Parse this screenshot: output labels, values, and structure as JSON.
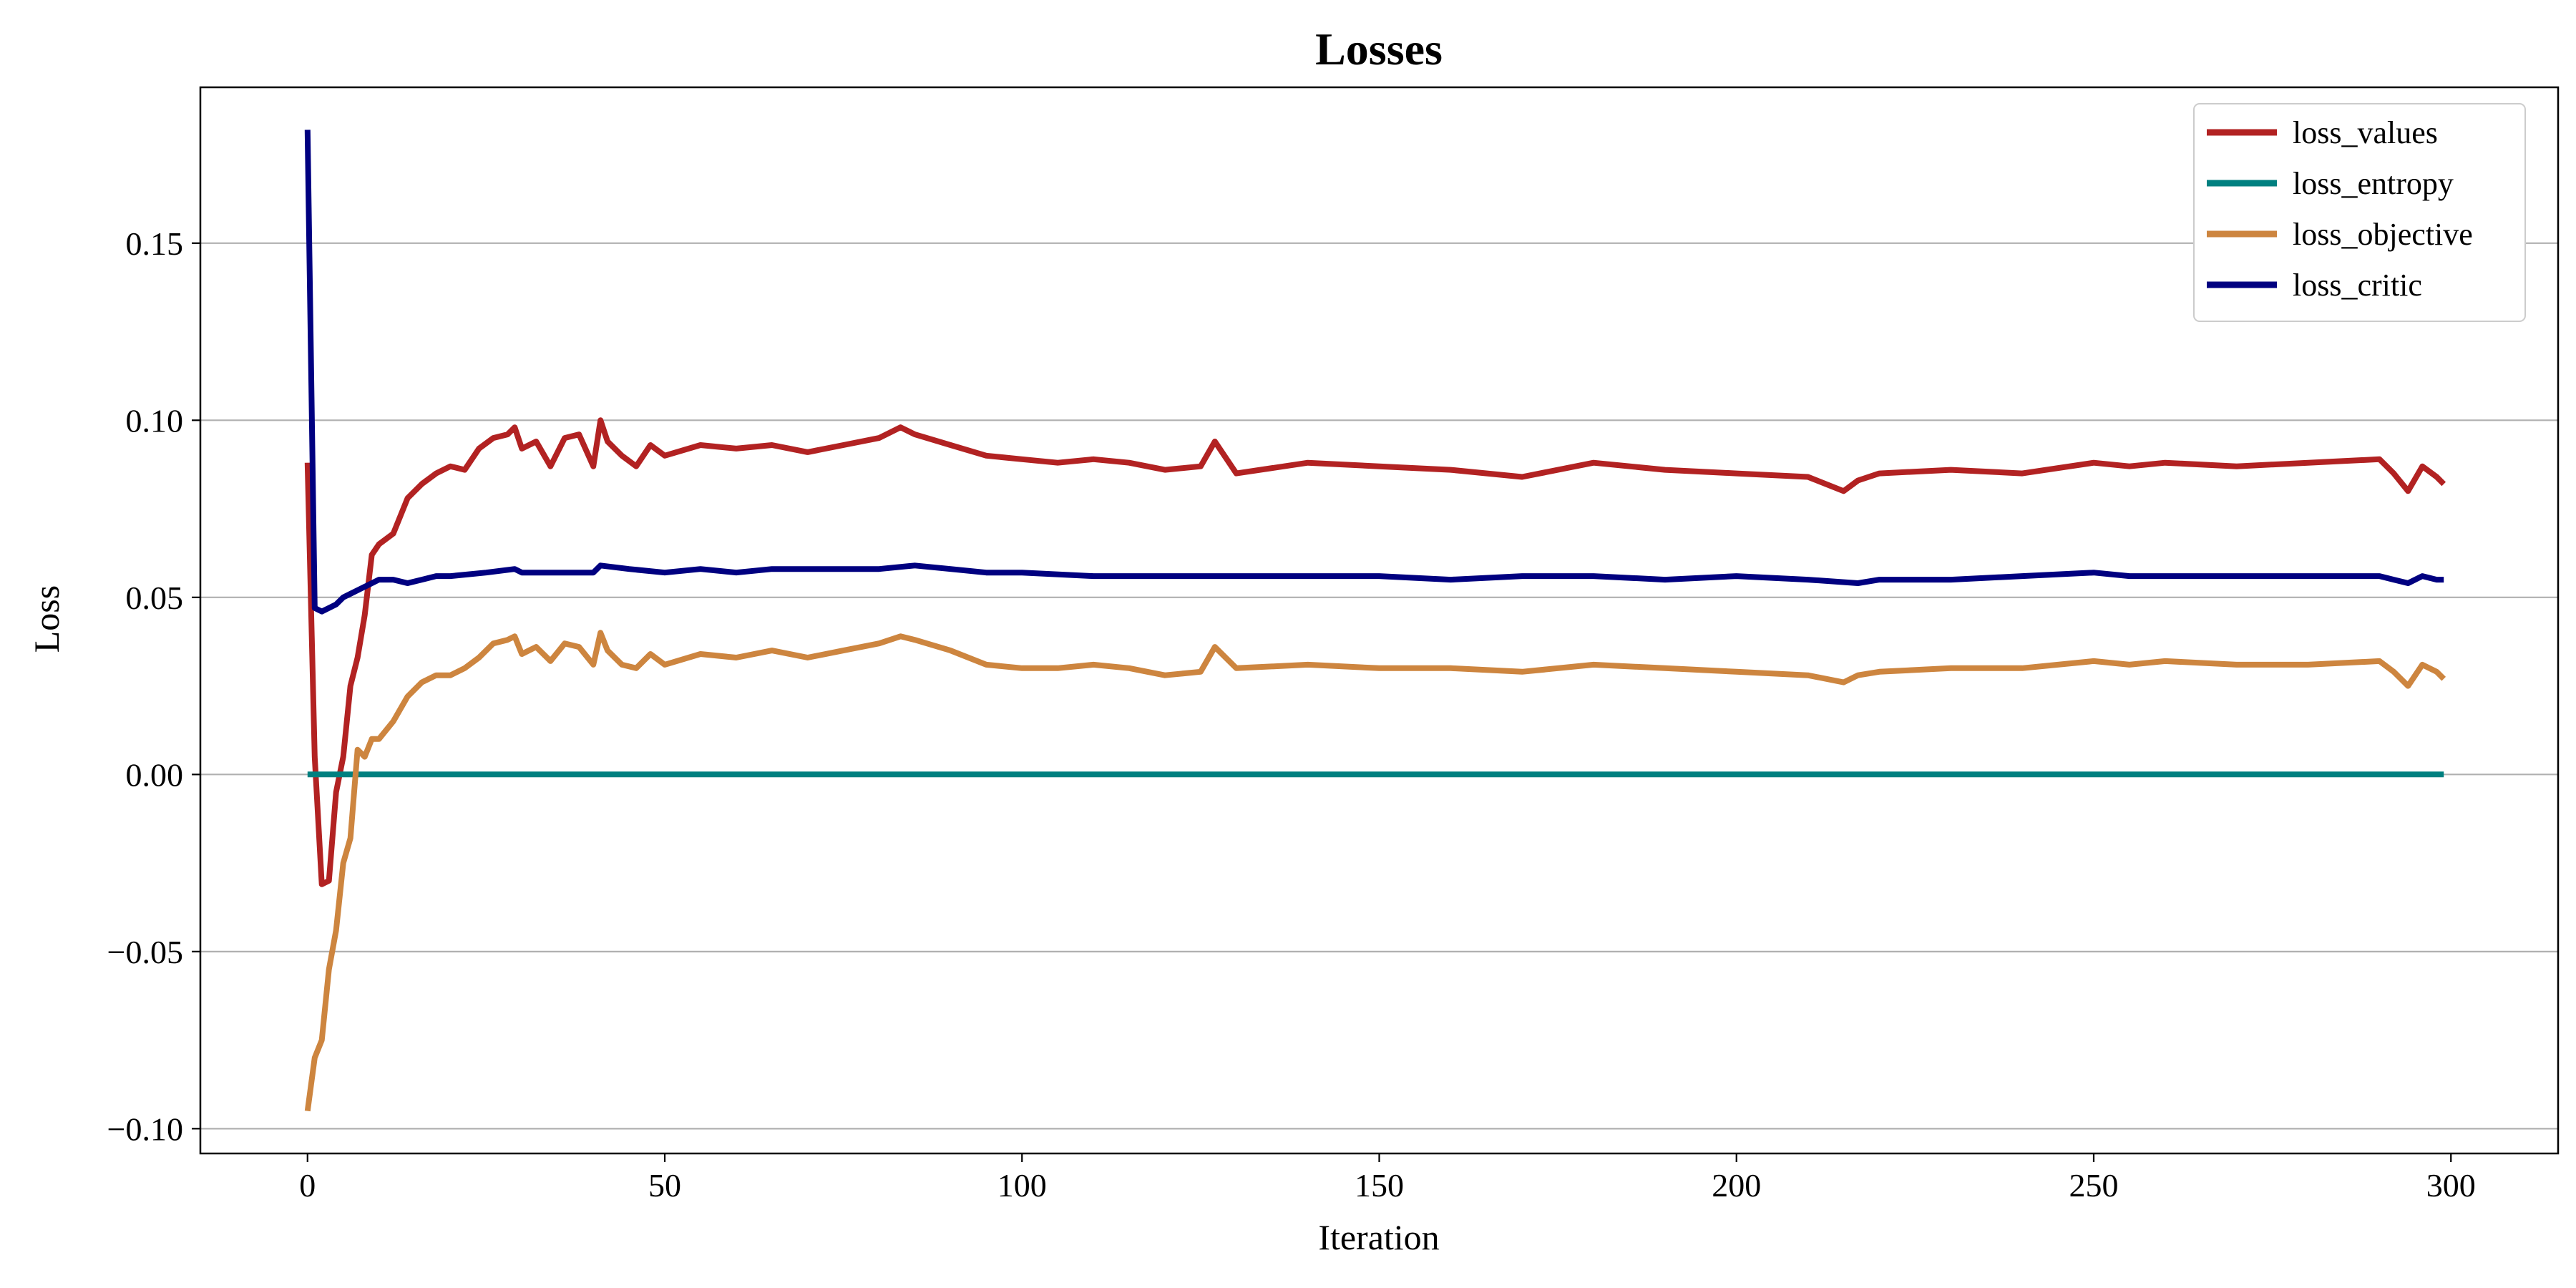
{
  "chart_data": {
    "type": "line",
    "title": "Losses",
    "xlabel": "Iteration",
    "ylabel": "Loss",
    "xlim": [
      -15,
      315
    ],
    "ylim": [
      -0.107,
      0.194
    ],
    "xticks": [
      0,
      50,
      100,
      150,
      200,
      250,
      300
    ],
    "xtick_labels": [
      "0",
      "50",
      "100",
      "150",
      "200",
      "250",
      "300"
    ],
    "yticks": [
      -0.1,
      -0.05,
      0.0,
      0.05,
      0.1,
      0.15
    ],
    "ytick_labels": [
      "−0.10",
      "−0.05",
      "0.00",
      "0.05",
      "0.10",
      "0.15"
    ],
    "grid": "horizontal",
    "legend_position": "top-right",
    "series": [
      {
        "name": "loss_values",
        "color": "#b22222",
        "x": [
          0,
          1,
          2,
          3,
          4,
          5,
          6,
          7,
          8,
          9,
          10,
          12,
          14,
          16,
          18,
          20,
          22,
          24,
          26,
          28,
          29,
          30,
          32,
          34,
          36,
          38,
          40,
          41,
          42,
          44,
          46,
          48,
          50,
          55,
          60,
          65,
          70,
          75,
          80,
          83,
          85,
          90,
          95,
          100,
          105,
          110,
          115,
          120,
          125,
          127,
          130,
          140,
          150,
          160,
          170,
          180,
          190,
          200,
          210,
          215,
          217,
          220,
          230,
          240,
          250,
          255,
          260,
          270,
          280,
          290,
          292,
          294,
          296,
          298,
          299
        ],
        "values": [
          0.088,
          0.005,
          -0.031,
          -0.03,
          -0.005,
          0.005,
          0.025,
          0.033,
          0.045,
          0.062,
          0.065,
          0.068,
          0.078,
          0.082,
          0.085,
          0.087,
          0.086,
          0.092,
          0.095,
          0.096,
          0.098,
          0.092,
          0.094,
          0.087,
          0.095,
          0.096,
          0.087,
          0.1,
          0.094,
          0.09,
          0.087,
          0.093,
          0.09,
          0.093,
          0.092,
          0.093,
          0.091,
          0.093,
          0.095,
          0.098,
          0.096,
          0.093,
          0.09,
          0.089,
          0.088,
          0.089,
          0.088,
          0.086,
          0.087,
          0.094,
          0.085,
          0.088,
          0.087,
          0.086,
          0.084,
          0.088,
          0.086,
          0.085,
          0.084,
          0.08,
          0.083,
          0.085,
          0.086,
          0.085,
          0.088,
          0.087,
          0.088,
          0.087,
          0.088,
          0.089,
          0.085,
          0.08,
          0.087,
          0.084,
          0.082
        ]
      },
      {
        "name": "loss_entropy",
        "color": "#008080",
        "x": [
          0,
          299
        ],
        "values": [
          0.0,
          0.0
        ]
      },
      {
        "name": "loss_objective",
        "color": "#cd853f",
        "x": [
          0,
          1,
          2,
          3,
          4,
          5,
          6,
          7,
          8,
          9,
          10,
          12,
          14,
          16,
          18,
          20,
          22,
          24,
          26,
          28,
          29,
          30,
          32,
          34,
          36,
          38,
          40,
          41,
          42,
          44,
          46,
          48,
          50,
          55,
          60,
          65,
          70,
          75,
          80,
          83,
          85,
          90,
          95,
          100,
          105,
          110,
          115,
          120,
          125,
          127,
          130,
          140,
          150,
          160,
          170,
          180,
          190,
          200,
          210,
          215,
          217,
          220,
          230,
          240,
          250,
          255,
          260,
          270,
          280,
          290,
          292,
          294,
          296,
          298,
          299
        ],
        "values": [
          -0.095,
          -0.08,
          -0.075,
          -0.055,
          -0.044,
          -0.025,
          -0.018,
          0.007,
          0.005,
          0.01,
          0.01,
          0.015,
          0.022,
          0.026,
          0.028,
          0.028,
          0.03,
          0.033,
          0.037,
          0.038,
          0.039,
          0.034,
          0.036,
          0.032,
          0.037,
          0.036,
          0.031,
          0.04,
          0.035,
          0.031,
          0.03,
          0.034,
          0.031,
          0.034,
          0.033,
          0.035,
          0.033,
          0.035,
          0.037,
          0.039,
          0.038,
          0.035,
          0.031,
          0.03,
          0.03,
          0.031,
          0.03,
          0.028,
          0.029,
          0.036,
          0.03,
          0.031,
          0.03,
          0.03,
          0.029,
          0.031,
          0.03,
          0.029,
          0.028,
          0.026,
          0.028,
          0.029,
          0.03,
          0.03,
          0.032,
          0.031,
          0.032,
          0.031,
          0.031,
          0.032,
          0.029,
          0.025,
          0.031,
          0.029,
          0.027
        ]
      },
      {
        "name": "loss_critic",
        "color": "#000080",
        "x": [
          0,
          1,
          2,
          3,
          4,
          5,
          6,
          8,
          10,
          12,
          14,
          16,
          18,
          20,
          25,
          29,
          30,
          35,
          40,
          41,
          45,
          50,
          55,
          60,
          65,
          70,
          75,
          80,
          85,
          90,
          95,
          100,
          110,
          120,
          130,
          140,
          150,
          160,
          170,
          180,
          190,
          200,
          210,
          217,
          220,
          230,
          240,
          250,
          255,
          260,
          270,
          280,
          290,
          292,
          294,
          296,
          298,
          299
        ],
        "values": [
          0.182,
          0.047,
          0.046,
          0.047,
          0.048,
          0.05,
          0.051,
          0.053,
          0.055,
          0.055,
          0.054,
          0.055,
          0.056,
          0.056,
          0.057,
          0.058,
          0.057,
          0.057,
          0.057,
          0.059,
          0.058,
          0.057,
          0.058,
          0.057,
          0.058,
          0.058,
          0.058,
          0.058,
          0.059,
          0.058,
          0.057,
          0.057,
          0.056,
          0.056,
          0.056,
          0.056,
          0.056,
          0.055,
          0.056,
          0.056,
          0.055,
          0.056,
          0.055,
          0.054,
          0.055,
          0.055,
          0.056,
          0.057,
          0.056,
          0.056,
          0.056,
          0.056,
          0.056,
          0.055,
          0.054,
          0.056,
          0.055,
          0.055
        ]
      }
    ]
  }
}
